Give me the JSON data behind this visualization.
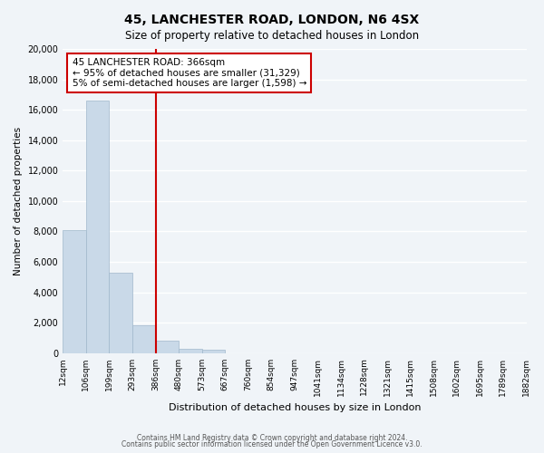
{
  "title": "45, LANCHESTER ROAD, LONDON, N6 4SX",
  "subtitle": "Size of property relative to detached houses in London",
  "xlabel": "Distribution of detached houses by size in London",
  "ylabel": "Number of detached properties",
  "bin_labels": [
    "12sqm",
    "106sqm",
    "199sqm",
    "293sqm",
    "386sqm",
    "480sqm",
    "573sqm",
    "667sqm",
    "760sqm",
    "854sqm",
    "947sqm",
    "1041sqm",
    "1134sqm",
    "1228sqm",
    "1321sqm",
    "1415sqm",
    "1508sqm",
    "1602sqm",
    "1695sqm",
    "1789sqm",
    "1882sqm"
  ],
  "bar_heights": [
    8100,
    16600,
    5300,
    1850,
    800,
    300,
    220,
    0,
    0,
    0,
    0,
    0,
    0,
    0,
    0,
    0,
    0,
    0,
    0,
    0
  ],
  "bar_color": "#c9d9e8",
  "bar_edge_color": "#a0b8cc",
  "vline_x": 4,
  "vline_color": "#cc0000",
  "annotation_text": "45 LANCHESTER ROAD: 366sqm\n← 95% of detached houses are smaller (31,329)\n5% of semi-detached houses are larger (1,598) →",
  "annotation_box_color": "#ffffff",
  "annotation_box_edge_color": "#cc0000",
  "ylim": [
    0,
    20000
  ],
  "yticks": [
    0,
    2000,
    4000,
    6000,
    8000,
    10000,
    12000,
    14000,
    16000,
    18000,
    20000
  ],
  "footer_line1": "Contains HM Land Registry data © Crown copyright and database right 2024.",
  "footer_line2": "Contains public sector information licensed under the Open Government Licence v3.0.",
  "bg_color": "#f0f4f8",
  "plot_bg_color": "#f0f4f8",
  "grid_color": "#ffffff"
}
